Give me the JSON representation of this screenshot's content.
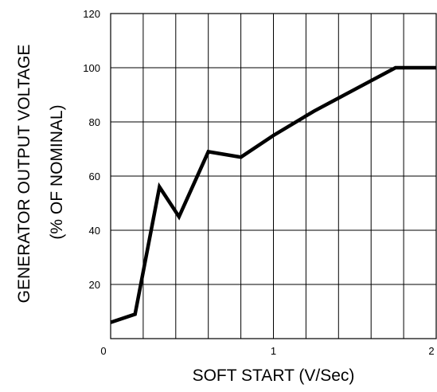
{
  "chart_data": {
    "type": "line",
    "title": "",
    "xlabel": "SOFT START (V/Sec)",
    "ylabel": [
      "GENERATOR OUTPUT VOLTAGE",
      "(% OF NOMINAL)"
    ],
    "xlim": [
      0,
      2
    ],
    "ylim": [
      0,
      120
    ],
    "x_ticks": [
      0,
      1,
      2
    ],
    "x_tick_labels": [
      "0",
      "1",
      "2"
    ],
    "y_ticks": [
      20,
      40,
      60,
      80,
      100,
      120
    ],
    "y_tick_labels": [
      "20",
      "40",
      "60",
      "80",
      "100",
      "120"
    ],
    "x_grid": [
      0.2,
      0.4,
      0.6,
      0.8,
      1.0,
      1.2,
      1.4,
      1.6,
      1.8
    ],
    "y_grid": [
      20,
      40,
      60,
      80,
      100
    ],
    "grid": true,
    "line_color": "#000000",
    "series": [
      {
        "x": [
          0.0,
          0.15,
          0.3,
          0.42,
          0.6,
          0.8,
          1.0,
          1.25,
          1.5,
          1.75,
          2.0
        ],
        "y": [
          6,
          9,
          56,
          45,
          69,
          67,
          75,
          84,
          92,
          100,
          100
        ]
      }
    ]
  }
}
